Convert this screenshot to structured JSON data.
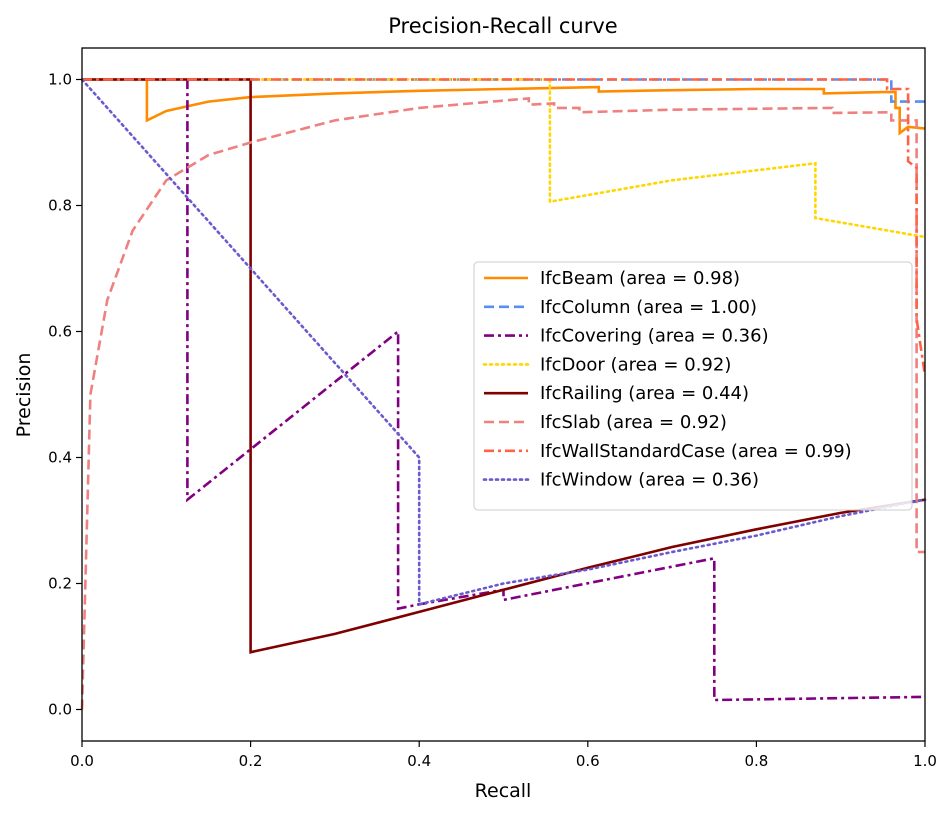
{
  "chart_data": {
    "type": "line",
    "title": "Precision-Recall curve",
    "xlabel": "Recall",
    "ylabel": "Precision",
    "xlim": [
      0.0,
      1.0
    ],
    "ylim": [
      -0.05,
      1.05
    ],
    "xticks": [
      "0.0",
      "0.2",
      "0.4",
      "0.6",
      "0.8",
      "1.0"
    ],
    "yticks": [
      "0.0",
      "0.2",
      "0.4",
      "0.6",
      "0.8",
      "1.0"
    ],
    "grid": false,
    "legend_position": "center-right",
    "series": [
      {
        "name": "IfcBeam (area = 0.98)",
        "color": "#ff8c00",
        "style": "solid",
        "points": [
          [
            0.0,
            1.0
          ],
          [
            0.077,
            1.0
          ],
          [
            0.077,
            0.935
          ],
          [
            0.1,
            0.95
          ],
          [
            0.15,
            0.965
          ],
          [
            0.2,
            0.972
          ],
          [
            0.3,
            0.978
          ],
          [
            0.4,
            0.982
          ],
          [
            0.5,
            0.985
          ],
          [
            0.613,
            0.988
          ],
          [
            0.613,
            0.981
          ],
          [
            0.7,
            0.983
          ],
          [
            0.8,
            0.985
          ],
          [
            0.88,
            0.985
          ],
          [
            0.88,
            0.978
          ],
          [
            0.95,
            0.98
          ],
          [
            0.965,
            0.98
          ],
          [
            0.965,
            0.955
          ],
          [
            0.97,
            0.955
          ],
          [
            0.97,
            0.915
          ],
          [
            0.98,
            0.925
          ],
          [
            1.0,
            0.922
          ]
        ]
      },
      {
        "name": "IfcColumn (area = 1.00)",
        "color": "#5a8ff0",
        "style": "dashed",
        "points": [
          [
            0.0,
            1.0
          ],
          [
            0.96,
            1.0
          ],
          [
            0.96,
            0.965
          ],
          [
            1.0,
            0.965
          ]
        ]
      },
      {
        "name": "IfcCovering (area = 0.36)",
        "color": "#800080",
        "style": "dashdot",
        "points": [
          [
            0.0,
            1.0
          ],
          [
            0.125,
            1.0
          ],
          [
            0.125,
            0.333
          ],
          [
            0.375,
            0.6
          ],
          [
            0.375,
            0.16
          ],
          [
            0.4,
            0.167
          ],
          [
            0.5,
            0.19
          ],
          [
            0.5,
            0.174
          ],
          [
            0.75,
            0.24
          ],
          [
            0.75,
            0.015
          ],
          [
            1.0,
            0.02
          ]
        ]
      },
      {
        "name": "IfcDoor (area = 0.92)",
        "color": "#ffd700",
        "style": "dotted",
        "points": [
          [
            0.0,
            1.0
          ],
          [
            0.555,
            1.0
          ],
          [
            0.555,
            0.806
          ],
          [
            0.7,
            0.84
          ],
          [
            0.87,
            0.867
          ],
          [
            0.87,
            0.78
          ],
          [
            1.0,
            0.75
          ]
        ]
      },
      {
        "name": "IfcRailing (area = 0.44)",
        "color": "#800000",
        "style": "solid",
        "points": [
          [
            0.0,
            1.0
          ],
          [
            0.2,
            1.0
          ],
          [
            0.2,
            0.091
          ],
          [
            0.3,
            0.12
          ],
          [
            0.4,
            0.155
          ],
          [
            0.5,
            0.19
          ],
          [
            0.6,
            0.225
          ],
          [
            0.7,
            0.258
          ],
          [
            0.8,
            0.286
          ],
          [
            0.9,
            0.312
          ],
          [
            1.0,
            0.333
          ]
        ]
      },
      {
        "name": "IfcSlab (area = 0.92)",
        "color": "#f08080",
        "style": "dashed",
        "points": [
          [
            0.0,
            0.0
          ],
          [
            0.01,
            0.5
          ],
          [
            0.03,
            0.65
          ],
          [
            0.06,
            0.76
          ],
          [
            0.1,
            0.84
          ],
          [
            0.15,
            0.88
          ],
          [
            0.2,
            0.9
          ],
          [
            0.3,
            0.935
          ],
          [
            0.4,
            0.955
          ],
          [
            0.53,
            0.97
          ],
          [
            0.53,
            0.96
          ],
          [
            0.56,
            0.962
          ],
          [
            0.56,
            0.955
          ],
          [
            0.59,
            0.955
          ],
          [
            0.59,
            0.948
          ],
          [
            0.7,
            0.952
          ],
          [
            0.89,
            0.955
          ],
          [
            0.89,
            0.947
          ],
          [
            0.96,
            0.948
          ],
          [
            0.96,
            0.935
          ],
          [
            0.99,
            0.935
          ],
          [
            0.99,
            0.25
          ],
          [
            1.0,
            0.25
          ]
        ]
      },
      {
        "name": "IfcWallStandardCase (area = 0.99)",
        "color": "#ff6347",
        "style": "dashdot",
        "points": [
          [
            0.0,
            1.0
          ],
          [
            0.955,
            1.0
          ],
          [
            0.955,
            0.985
          ],
          [
            0.98,
            0.985
          ],
          [
            0.98,
            0.87
          ],
          [
            0.99,
            0.86
          ],
          [
            0.99,
            0.62
          ],
          [
            1.0,
            0.53
          ]
        ]
      },
      {
        "name": "IfcWindow (area = 0.36)",
        "color": "#6a5acd",
        "style": "dotted",
        "points": [
          [
            0.0,
            1.0
          ],
          [
            0.4,
            0.4
          ],
          [
            0.4,
            0.167
          ],
          [
            0.5,
            0.2
          ],
          [
            0.6,
            0.222
          ],
          [
            0.7,
            0.25
          ],
          [
            0.8,
            0.276
          ],
          [
            0.9,
            0.307
          ],
          [
            1.0,
            0.333
          ]
        ]
      }
    ]
  }
}
